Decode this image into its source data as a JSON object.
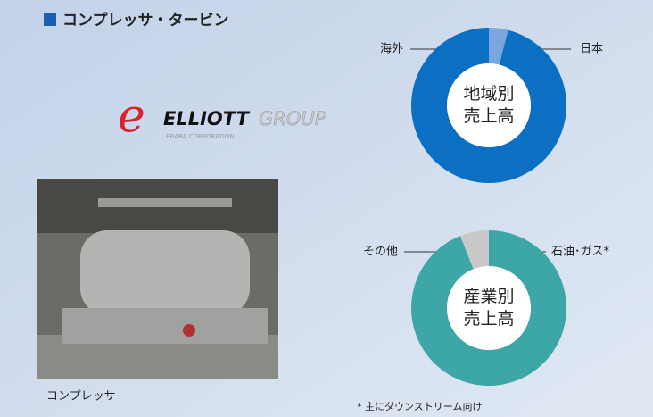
{
  "header": {
    "title": "コンプレッサ・タービン"
  },
  "logo": {
    "name": "ELLIOTT",
    "suffix": "GROUP",
    "tagline": "EBARA CORPORATION"
  },
  "photo": {
    "caption": "コンプレッサ"
  },
  "footnote": "* 主にダウンストリーム向け",
  "chart_data": [
    {
      "type": "donut",
      "center_label": [
        "地域別",
        "売上高"
      ],
      "categories": [
        "日本",
        "海外"
      ],
      "values": [
        4,
        96
      ],
      "colors": [
        "#7aa6dd",
        "#0b6fc4"
      ]
    },
    {
      "type": "donut",
      "center_label": [
        "産業別",
        "売上高"
      ],
      "categories": [
        "石油･ガス*",
        "その他"
      ],
      "values": [
        94,
        6
      ],
      "colors": [
        "#3da7a8",
        "#c9c9c9"
      ]
    }
  ]
}
